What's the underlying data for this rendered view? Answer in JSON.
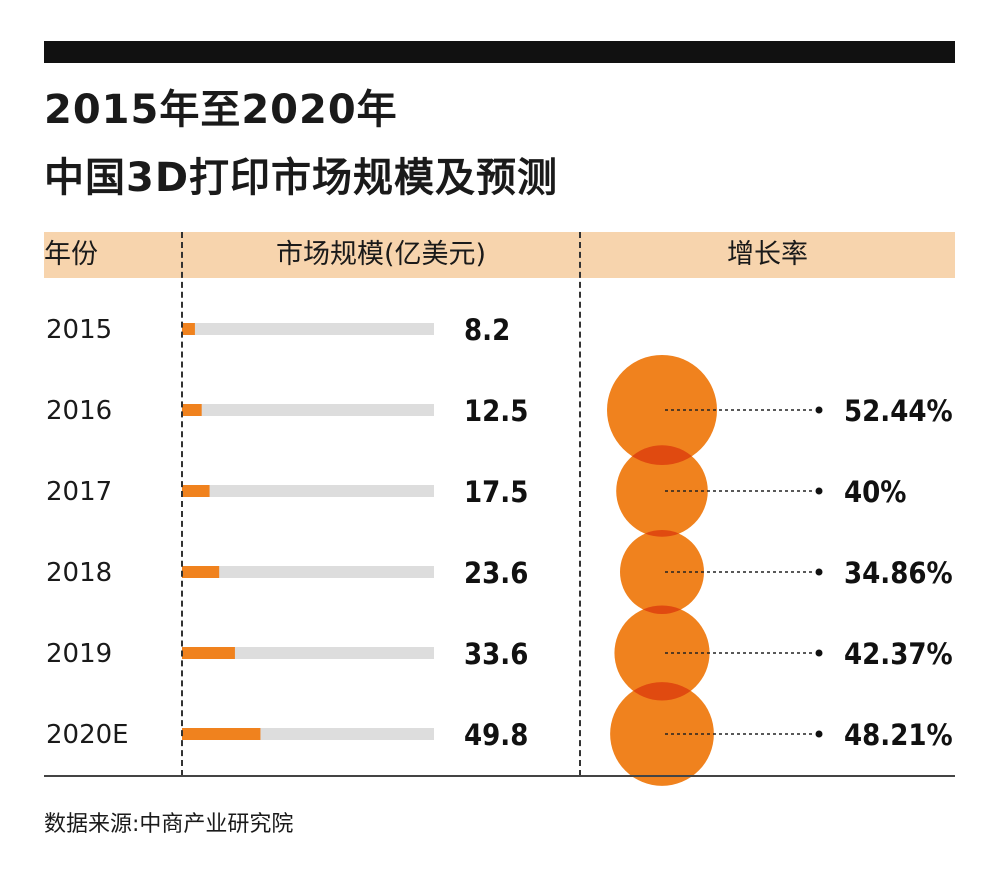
{
  "title": {
    "line1": "2015年至2020年",
    "line2": "中国3D打印市场规模及预测"
  },
  "headers": {
    "year": "年份",
    "market_size": "市场规模(亿美元)",
    "growth": "增长率"
  },
  "source": "数据来源:中商产业研究院",
  "colors": {
    "accent": "#f0821e",
    "overlap": "#e04a10",
    "track": "#dddddd",
    "header_band": "#f7d4ad"
  },
  "chart_data": {
    "type": "bar",
    "categories": [
      "2015",
      "2016",
      "2017",
      "2018",
      "2019",
      "2020E"
    ],
    "values": [
      8.2,
      12.5,
      17.5,
      23.6,
      33.6,
      49.8
    ],
    "value_labels": [
      "8.2",
      "12.5",
      "17.5",
      "23.6",
      "33.6",
      "49.8"
    ],
    "xlim": [
      0,
      160
    ],
    "growth_rate": {
      "values": [
        null,
        52.44,
        40,
        34.86,
        42.37,
        48.21
      ],
      "labels": [
        "",
        "52.44%",
        "40%",
        "34.86%",
        "42.37%",
        "48.21%"
      ]
    }
  }
}
